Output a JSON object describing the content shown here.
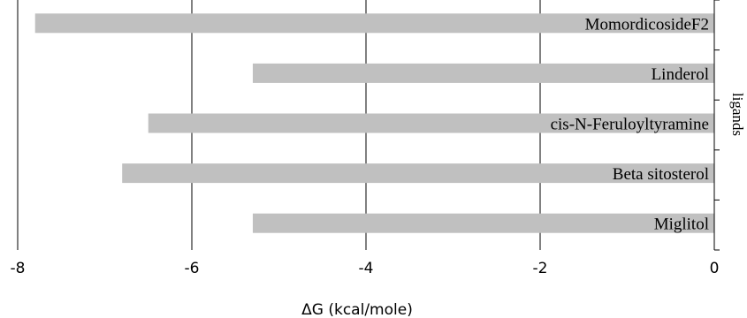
{
  "chart_data": {
    "type": "bar",
    "orientation": "horizontal",
    "categories": [
      "Momordicoside F2",
      "Linderol",
      "cis-N-Feruloyltyramine",
      "Beta sitosterol",
      "Miglitol"
    ],
    "category_labels": [
      "MomordicosideF2",
      "Linderol",
      "cis-N-Feruloyltyramine",
      "Beta sitosterol",
      "Miglitol"
    ],
    "values": [
      -7.8,
      -5.3,
      -6.5,
      -6.8,
      -5.3
    ],
    "xlabel": "ΔG (kcal/mole)",
    "ylabel": "ligands",
    "xlim": [
      -8,
      0
    ],
    "xticks": [
      -8,
      -6,
      -4,
      -2,
      0
    ],
    "xtick_labels": [
      "-8",
      "-6",
      "-4",
      "-2",
      "0"
    ],
    "grid": "vertical",
    "bar_color": "#c0c0c0",
    "label_position": "inside-right"
  }
}
